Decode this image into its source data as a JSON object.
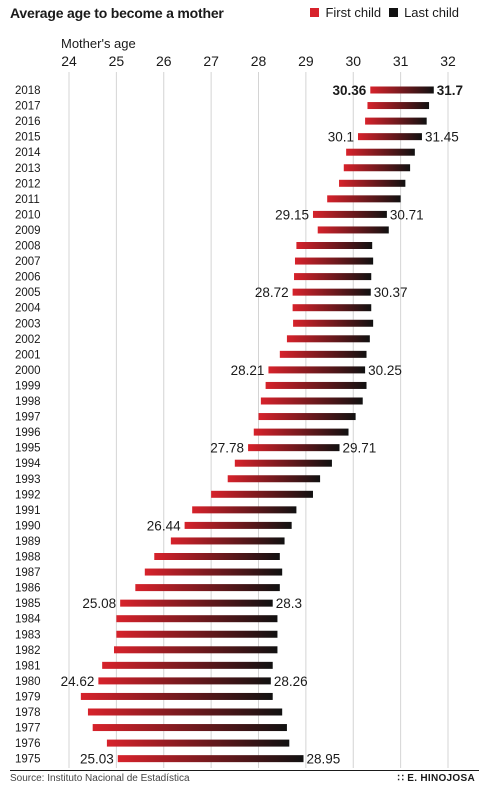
{
  "title": "Average age to become a mother",
  "legend": {
    "first_label": "First child",
    "last_label": "Last child",
    "first_color": "#d7222b",
    "last_color": "#111111"
  },
  "source": "Source: Instituto Nacional de Estadística",
  "credit": "E. HINOJOSA",
  "chart_data": {
    "type": "bar",
    "xlabel": "Mother's age",
    "xlim": [
      24,
      32
    ],
    "ticks": [
      "24",
      "25",
      "26",
      "27",
      "28",
      "29",
      "30",
      "31",
      "32"
    ],
    "grid": true,
    "categories": [
      "2018",
      "2017",
      "2016",
      "2015",
      "2014",
      "2013",
      "2012",
      "2011",
      "2010",
      "2009",
      "2008",
      "2007",
      "2006",
      "2005",
      "2004",
      "2003",
      "2002",
      "2001",
      "2000",
      "1999",
      "1998",
      "1997",
      "1996",
      "1995",
      "1994",
      "1993",
      "1992",
      "1991",
      "1990",
      "1989",
      "1988",
      "1987",
      "1986",
      "1985",
      "1984",
      "1983",
      "1982",
      "1981",
      "1980",
      "1979",
      "1978",
      "1977",
      "1976",
      "1975"
    ],
    "series": [
      {
        "name": "First child",
        "values": [
          30.36,
          30.3,
          30.25,
          30.1,
          29.85,
          29.8,
          29.7,
          29.45,
          29.15,
          29.25,
          28.8,
          28.77,
          28.75,
          28.72,
          28.72,
          28.73,
          28.6,
          28.45,
          28.21,
          28.15,
          28.05,
          28.0,
          27.9,
          27.78,
          27.5,
          27.35,
          27.0,
          26.6,
          26.44,
          26.15,
          25.8,
          25.6,
          25.4,
          25.08,
          25.0,
          25.0,
          24.95,
          24.7,
          24.62,
          24.25,
          24.4,
          24.5,
          24.8,
          25.03
        ]
      },
      {
        "name": "Last child",
        "values": [
          31.7,
          31.6,
          31.55,
          31.45,
          31.3,
          31.2,
          31.1,
          31.0,
          30.71,
          30.75,
          30.4,
          30.42,
          30.38,
          30.37,
          30.38,
          30.42,
          30.35,
          30.28,
          30.25,
          30.28,
          30.2,
          30.05,
          29.9,
          29.71,
          29.55,
          29.3,
          29.15,
          28.8,
          28.7,
          28.55,
          28.45,
          28.5,
          28.45,
          28.3,
          28.4,
          28.4,
          28.4,
          28.3,
          28.26,
          28.3,
          28.5,
          28.6,
          28.65,
          28.95
        ]
      }
    ],
    "annotations": [
      {
        "year": "2018",
        "first": "30.36",
        "last": "31.7",
        "bold": true
      },
      {
        "year": "2015",
        "first": "30.1",
        "last": "31.45",
        "bold": false
      },
      {
        "year": "2010",
        "first": "29.15",
        "last": "30.71",
        "bold": false
      },
      {
        "year": "2005",
        "first": "28.72",
        "last": "30.37",
        "bold": false
      },
      {
        "year": "2000",
        "first": "28.21",
        "last": "30.25",
        "bold": false
      },
      {
        "year": "1995",
        "first": "27.78",
        "last": "29.71",
        "bold": false
      },
      {
        "year": "1990",
        "first": "26.44",
        "last": "",
        "bold": false
      },
      {
        "year": "1985",
        "first": "25.08",
        "last": "28.3",
        "bold": false
      },
      {
        "year": "1980",
        "first": "24.62",
        "last": "28.26",
        "bold": false
      },
      {
        "year": "1975",
        "first": "25.03",
        "last": "28.95",
        "bold": false
      }
    ]
  }
}
